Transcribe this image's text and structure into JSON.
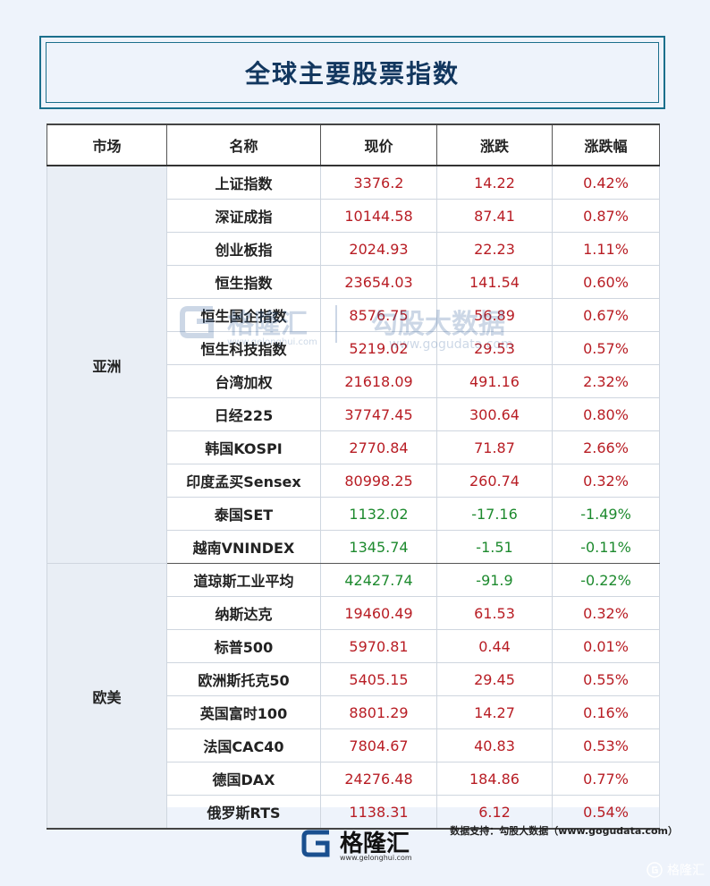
{
  "title": "全球主要股票指数",
  "headers": [
    "市场",
    "名称",
    "现价",
    "涨跌",
    "涨跌幅"
  ],
  "colors": {
    "up": "#b81d24",
    "down": "#1d8a2e",
    "title": "#12375f"
  },
  "groups": [
    {
      "market": "亚洲",
      "rows": [
        {
          "name": "上证指数",
          "price": "3376.2",
          "change": "14.22",
          "pct": "0.42%",
          "dir": "up"
        },
        {
          "name": "深证成指",
          "price": "10144.58",
          "change": "87.41",
          "pct": "0.87%",
          "dir": "up"
        },
        {
          "name": "创业板指",
          "price": "2024.93",
          "change": "22.23",
          "pct": "1.11%",
          "dir": "up"
        },
        {
          "name": "恒生指数",
          "price": "23654.03",
          "change": "141.54",
          "pct": "0.60%",
          "dir": "up"
        },
        {
          "name": "恒生国企指数",
          "price": "8576.75",
          "change": "56.89",
          "pct": "0.67%",
          "dir": "up"
        },
        {
          "name": "恒生科技指数",
          "price": "5219.02",
          "change": "29.53",
          "pct": "0.57%",
          "dir": "up"
        },
        {
          "name": "台湾加权",
          "price": "21618.09",
          "change": "491.16",
          "pct": "2.32%",
          "dir": "up"
        },
        {
          "name": "日经225",
          "price": "37747.45",
          "change": "300.64",
          "pct": "0.80%",
          "dir": "up"
        },
        {
          "name": "韩国KOSPI",
          "price": "2770.84",
          "change": "71.87",
          "pct": "2.66%",
          "dir": "up"
        },
        {
          "name": "印度孟买Sensex",
          "price": "80998.25",
          "change": "260.74",
          "pct": "0.32%",
          "dir": "up"
        },
        {
          "name": "泰国SET",
          "price": "1132.02",
          "change": "-17.16",
          "pct": "-1.49%",
          "dir": "down"
        },
        {
          "name": "越南VNINDEX",
          "price": "1345.74",
          "change": "-1.51",
          "pct": "-0.11%",
          "dir": "down"
        }
      ]
    },
    {
      "market": "欧美",
      "rows": [
        {
          "name": "道琼斯工业平均",
          "price": "42427.74",
          "change": "-91.9",
          "pct": "-0.22%",
          "dir": "down"
        },
        {
          "name": "纳斯达克",
          "price": "19460.49",
          "change": "61.53",
          "pct": "0.32%",
          "dir": "up"
        },
        {
          "name": "标普500",
          "price": "5970.81",
          "change": "0.44",
          "pct": "0.01%",
          "dir": "up"
        },
        {
          "name": "欧洲斯托克50",
          "price": "5405.15",
          "change": "29.45",
          "pct": "0.55%",
          "dir": "up"
        },
        {
          "name": "英国富时100",
          "price": "8801.29",
          "change": "14.27",
          "pct": "0.16%",
          "dir": "up"
        },
        {
          "name": "法国CAC40",
          "price": "7804.67",
          "change": "40.83",
          "pct": "0.53%",
          "dir": "up"
        },
        {
          "name": "德国DAX",
          "price": "24276.48",
          "change": "184.86",
          "pct": "0.77%",
          "dir": "up"
        },
        {
          "name": "俄罗斯RTS",
          "price": "1138.31",
          "change": "6.12",
          "pct": "0.54%",
          "dir": "up"
        }
      ]
    }
  ],
  "watermark": {
    "brand": "格隆汇",
    "brand_url": "www.gelonghui.com",
    "brand2": "勾股大数据",
    "brand2_url": "www.gogudata.com"
  },
  "source": "数据支持：勾股大数据（www.gogudata.com）",
  "footer": {
    "brand": "格隆汇",
    "url": "www.gelonghui.com"
  },
  "corner_label": "格隆汇"
}
